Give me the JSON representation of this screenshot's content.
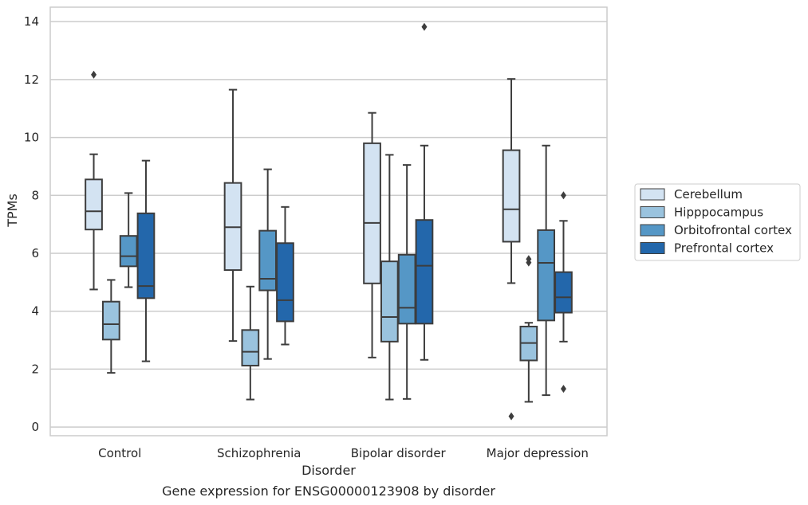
{
  "chart_data": {
    "type": "box",
    "caption": "Gene expression for ENSG00000123908 by disorder",
    "xlabel": "Disorder",
    "ylabel": "TPMs",
    "ylim": [
      -0.3,
      14.5
    ],
    "yticks": [
      0,
      2,
      4,
      6,
      8,
      10,
      12,
      14
    ],
    "grid": true,
    "legend_position": "right",
    "categories": [
      "Control",
      "Schizophrenia",
      "Bipolar disorder",
      "Major depression"
    ],
    "series": [
      {
        "name": "Cerebellum",
        "color": "#d3e3f2",
        "boxes": [
          {
            "whisker_low": 4.75,
            "q1": 6.82,
            "median": 7.45,
            "q3": 8.55,
            "whisker_high": 9.42,
            "outliers": [
              12.17
            ]
          },
          {
            "whisker_low": 2.97,
            "q1": 5.42,
            "median": 6.9,
            "q3": 8.43,
            "whisker_high": 11.65,
            "outliers": []
          },
          {
            "whisker_low": 2.4,
            "q1": 4.96,
            "median": 7.05,
            "q3": 9.8,
            "whisker_high": 10.85,
            "outliers": []
          },
          {
            "whisker_low": 4.97,
            "q1": 6.4,
            "median": 7.52,
            "q3": 9.56,
            "whisker_high": 12.02,
            "outliers": [
              0.37
            ]
          }
        ]
      },
      {
        "name": "Hipppocampus",
        "color": "#9ac3de",
        "boxes": [
          {
            "whisker_low": 1.87,
            "q1": 3.02,
            "median": 3.55,
            "q3": 4.33,
            "whisker_high": 5.08,
            "outliers": []
          },
          {
            "whisker_low": 0.95,
            "q1": 2.12,
            "median": 2.6,
            "q3": 3.35,
            "whisker_high": 4.85,
            "outliers": []
          },
          {
            "whisker_low": 0.95,
            "q1": 2.95,
            "median": 3.8,
            "q3": 5.72,
            "whisker_high": 9.4,
            "outliers": []
          },
          {
            "whisker_low": 0.87,
            "q1": 2.3,
            "median": 2.9,
            "q3": 3.47,
            "whisker_high": 3.6,
            "outliers": [
              5.68,
              5.8
            ]
          }
        ]
      },
      {
        "name": "Orbitofrontal cortex",
        "color": "#5597c6",
        "boxes": [
          {
            "whisker_low": 4.83,
            "q1": 5.55,
            "median": 5.9,
            "q3": 6.6,
            "whisker_high": 8.08,
            "outliers": []
          },
          {
            "whisker_low": 2.35,
            "q1": 4.72,
            "median": 5.12,
            "q3": 6.78,
            "whisker_high": 8.9,
            "outliers": []
          },
          {
            "whisker_low": 0.97,
            "q1": 3.57,
            "median": 4.12,
            "q3": 5.95,
            "whisker_high": 9.05,
            "outliers": []
          },
          {
            "whisker_low": 1.1,
            "q1": 3.68,
            "median": 5.67,
            "q3": 6.8,
            "whisker_high": 9.72,
            "outliers": []
          }
        ]
      },
      {
        "name": "Prefrontal cortex",
        "color": "#2367ab",
        "boxes": [
          {
            "whisker_low": 2.27,
            "q1": 4.45,
            "median": 4.87,
            "q3": 7.38,
            "whisker_high": 9.2,
            "outliers": []
          },
          {
            "whisker_low": 2.85,
            "q1": 3.65,
            "median": 4.38,
            "q3": 6.35,
            "whisker_high": 7.6,
            "outliers": []
          },
          {
            "whisker_low": 2.32,
            "q1": 3.57,
            "median": 5.57,
            "q3": 7.15,
            "whisker_high": 9.72,
            "outliers": [
              13.82
            ]
          },
          {
            "whisker_low": 2.95,
            "q1": 3.95,
            "median": 4.48,
            "q3": 5.35,
            "whisker_high": 7.12,
            "outliers": [
              1.32,
              8.0
            ]
          }
        ]
      }
    ]
  }
}
